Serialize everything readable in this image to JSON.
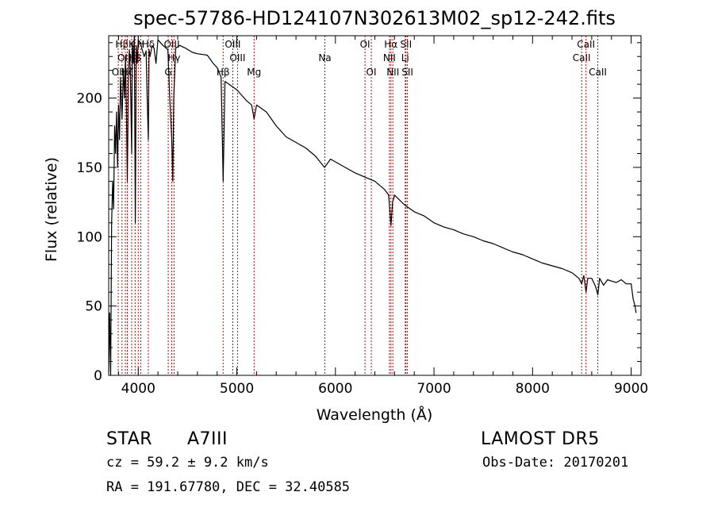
{
  "chart_data": {
    "type": "line",
    "title": "spec-57786-HD124107N302613M02_sp12-242.fits",
    "xlabel": "Wavelength (Å)",
    "ylabel": "Flux (relative)",
    "xlim": [
      3700,
      9100
    ],
    "ylim": [
      0,
      245
    ],
    "xticks": [
      4000,
      5000,
      6000,
      7000,
      8000,
      9000
    ],
    "yticks": [
      0,
      50,
      100,
      150,
      200
    ],
    "grid": false,
    "series": [
      {
        "x": [
          3700,
          3710,
          3720,
          3730,
          3740,
          3750,
          3760,
          3770,
          3780,
          3790,
          3800,
          3810,
          3820,
          3835,
          3850,
          3860,
          3870,
          3880,
          3889,
          3900,
          3910,
          3920,
          3933,
          3940,
          3950,
          3960,
          3970,
          3980,
          3990,
          4000,
          4020,
          4040,
          4060,
          4080,
          4090,
          4102,
          4110,
          4120,
          4140,
          4160,
          4180,
          4200,
          4250,
          4300,
          4320,
          4340,
          4350,
          4360,
          4380,
          4420,
          4480,
          4550,
          4600,
          4700,
          4760,
          4800,
          4840,
          4861,
          4880,
          4920,
          5000,
          5100,
          5150,
          5175,
          5200,
          5300,
          5400,
          5500,
          5600,
          5700,
          5800,
          5890,
          5950,
          6000,
          6100,
          6200,
          6300,
          6400,
          6500,
          6540,
          6563,
          6580,
          6600,
          6700,
          6800,
          6900,
          7000,
          7100,
          7200,
          7300,
          7400,
          7500,
          7600,
          7700,
          7800,
          7900,
          8000,
          8100,
          8200,
          8300,
          8400,
          8470,
          8498,
          8520,
          8542,
          8560,
          8600,
          8640,
          8662,
          8680,
          8720,
          8760,
          8800,
          8850,
          8900,
          8950,
          9000,
          9020,
          9040,
          9050
        ],
        "y": [
          2,
          45,
          0,
          110,
          140,
          120,
          180,
          160,
          190,
          150,
          195,
          170,
          215,
          185,
          220,
          200,
          230,
          190,
          140,
          215,
          235,
          220,
          160,
          240,
          225,
          245,
          110,
          238,
          225,
          242,
          240,
          235,
          230,
          234,
          200,
          170,
          235,
          230,
          238,
          236,
          225,
          242,
          238,
          235,
          200,
          170,
          140,
          200,
          236,
          238,
          236,
          233,
          232,
          231,
          225,
          222,
          215,
          140,
          212,
          210,
          206,
          198,
          195,
          185,
          195,
          190,
          180,
          172,
          168,
          164,
          158,
          150,
          156,
          154,
          150,
          146,
          143,
          140,
          134,
          130,
          108,
          125,
          130,
          123,
          118,
          115,
          110,
          107,
          105,
          102,
          100,
          97,
          95,
          92,
          89,
          87,
          84,
          81,
          79,
          77,
          74,
          70,
          66,
          72,
          60,
          70,
          70,
          64,
          58,
          70,
          65,
          69,
          68,
          67,
          69,
          66,
          66,
          55,
          50,
          45
        ]
      }
    ],
    "line_labels": [
      {
        "x": 3797,
        "label": "OII",
        "row": 2
      },
      {
        "x": 3835,
        "label": "Hβ",
        "row": 0
      },
      {
        "x": 3869,
        "label": "OIII",
        "row": 1
      },
      {
        "x": 3889,
        "label": "Hζ",
        "row": 2
      },
      {
        "x": 3933,
        "label": "K",
        "row": 0
      },
      {
        "x": 3968,
        "label": "Hε",
        "row": 1
      },
      {
        "x": 4000,
        "label": "S",
        "row": 1
      },
      {
        "x": 4026,
        "label": "H",
        "row": 0
      },
      {
        "x": 4102,
        "label": "Hδ",
        "row": 0
      },
      {
        "x": 4304,
        "label": "G",
        "row": 2
      },
      {
        "x": 4340,
        "label": "OIII",
        "row": 0
      },
      {
        "x": 4363,
        "label": "Hγ",
        "row": 1
      },
      {
        "x": 4861,
        "label": "Hβ",
        "row": 2
      },
      {
        "x": 4959,
        "label": "OIII",
        "row": 0
      },
      {
        "x": 5007,
        "label": "OIII",
        "row": 1
      },
      {
        "x": 5175,
        "label": "Mg",
        "row": 2
      },
      {
        "x": 5893,
        "label": "Na",
        "row": 1
      },
      {
        "x": 6300,
        "label": "OI",
        "row": 0
      },
      {
        "x": 6364,
        "label": "OI",
        "row": 2
      },
      {
        "x": 6548,
        "label": "NII",
        "row": 1
      },
      {
        "x": 6563,
        "label": "Hα",
        "row": 0
      },
      {
        "x": 6583,
        "label": "NII",
        "row": 2
      },
      {
        "x": 6708,
        "label": "Li",
        "row": 1
      },
      {
        "x": 6716,
        "label": "SII",
        "row": 0
      },
      {
        "x": 6731,
        "label": "SII",
        "row": 2
      },
      {
        "x": 8498,
        "label": "CaII",
        "row": 1
      },
      {
        "x": 8542,
        "label": "CaII",
        "row": 0
      },
      {
        "x": 8662,
        "label": "CaII",
        "row": 2
      }
    ]
  },
  "info": {
    "object_class": "STAR",
    "subclass": "A7III",
    "survey": "LAMOST DR5",
    "redshift": "cz = 59.2 ± 9.2 km/s",
    "obs_date": "Obs-Date: 20170201",
    "coords": "RA = 191.67780, DEC =  32.40585"
  },
  "colors": {
    "axis": "#000000",
    "spectrum": "#000000",
    "line_marker": "#cc0000",
    "background": "#ffffff"
  }
}
